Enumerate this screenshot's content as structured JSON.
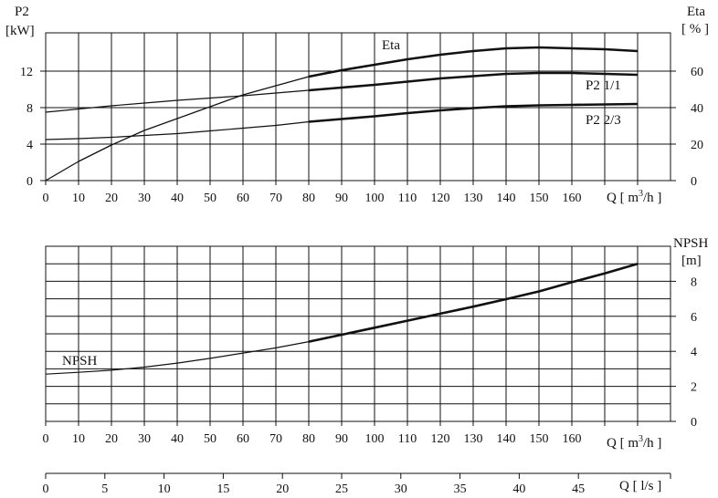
{
  "chart_data": [
    {
      "type": "line",
      "left_axis": {
        "title": "P2",
        "unit": "[kW]",
        "ticks": [
          0,
          4,
          8,
          12
        ],
        "ylim": [
          0,
          16.2
        ]
      },
      "right_axis": {
        "title": "Eta",
        "unit": "[ % ]",
        "ticks": [
          0,
          20,
          40,
          60
        ],
        "ylim": [
          0,
          81
        ]
      },
      "x_axis": {
        "label": "Q [ m³/h ]",
        "ticks": [
          0,
          10,
          20,
          30,
          40,
          50,
          60,
          70,
          80,
          90,
          100,
          110,
          120,
          130,
          140,
          150,
          160
        ],
        "xlim": [
          0,
          190
        ]
      },
      "grid": true,
      "series": [
        {
          "name": "Eta",
          "axis": "right",
          "stroke_width": 1.3,
          "bold_from": 80,
          "x": [
            0,
            10,
            20,
            30,
            40,
            50,
            60,
            70,
            80,
            90,
            100,
            110,
            120,
            130,
            140,
            150,
            160,
            170,
            180
          ],
          "y": [
            0,
            10.5,
            19.5,
            27.5,
            34,
            40.5,
            47,
            52,
            57,
            60.5,
            63.5,
            66.5,
            69,
            71,
            72.5,
            73,
            72.5,
            72,
            71
          ]
        },
        {
          "name": "P2 1/1",
          "axis": "left",
          "stroke_width": 1.2,
          "bold_from": 80,
          "x": [
            0,
            10,
            20,
            30,
            40,
            50,
            60,
            70,
            80,
            90,
            100,
            110,
            120,
            130,
            140,
            150,
            160,
            170,
            180
          ],
          "y": [
            7.5,
            7.85,
            8.2,
            8.5,
            8.8,
            9.05,
            9.3,
            9.6,
            9.9,
            10.2,
            10.5,
            10.85,
            11.2,
            11.45,
            11.7,
            11.8,
            11.8,
            11.7,
            11.6
          ]
        },
        {
          "name": "P2 2/3",
          "axis": "left",
          "stroke_width": 1.2,
          "bold_from": 80,
          "x": [
            0,
            10,
            20,
            30,
            40,
            50,
            60,
            70,
            80,
            90,
            100,
            110,
            120,
            130,
            140,
            150,
            160,
            170,
            180
          ],
          "y": [
            4.5,
            4.6,
            4.75,
            4.95,
            5.15,
            5.45,
            5.75,
            6.05,
            6.45,
            6.75,
            7.05,
            7.4,
            7.7,
            7.95,
            8.15,
            8.25,
            8.3,
            8.35,
            8.4
          ]
        }
      ],
      "labels": {
        "eta": "Eta",
        "p2_full": "P2  1/1",
        "p2_two_thirds": "P2  2/3"
      }
    },
    {
      "type": "line",
      "right_axis": {
        "title": "NPSH",
        "unit": "[m]",
        "ticks": [
          0,
          2,
          4,
          6,
          8
        ],
        "ylim": [
          0,
          10
        ]
      },
      "x_axis": {
        "label": "Q [ m³/h ]",
        "ticks": [
          0,
          10,
          20,
          30,
          40,
          50,
          60,
          70,
          80,
          90,
          100,
          110,
          120,
          130,
          140,
          150,
          160
        ],
        "xlim": [
          0,
          190
        ]
      },
      "grid": true,
      "series": [
        {
          "name": "NPSH",
          "axis": "right",
          "stroke_width": 1.2,
          "bold_from": 80,
          "x": [
            0,
            10,
            20,
            30,
            40,
            50,
            60,
            70,
            80,
            90,
            100,
            110,
            120,
            130,
            140,
            150,
            160,
            170,
            180
          ],
          "y": [
            2.7,
            2.8,
            2.92,
            3.1,
            3.33,
            3.6,
            3.9,
            4.2,
            4.55,
            4.95,
            5.35,
            5.75,
            6.15,
            6.55,
            6.98,
            7.42,
            7.95,
            8.45,
            9.0
          ]
        }
      ]
    },
    {
      "type": "axis",
      "x_axis": {
        "label": "Q [ l/s ]",
        "ticks": [
          0,
          5,
          10,
          15,
          20,
          25,
          30,
          35,
          40,
          45
        ],
        "xlim": [
          0,
          52.78
        ]
      }
    }
  ]
}
